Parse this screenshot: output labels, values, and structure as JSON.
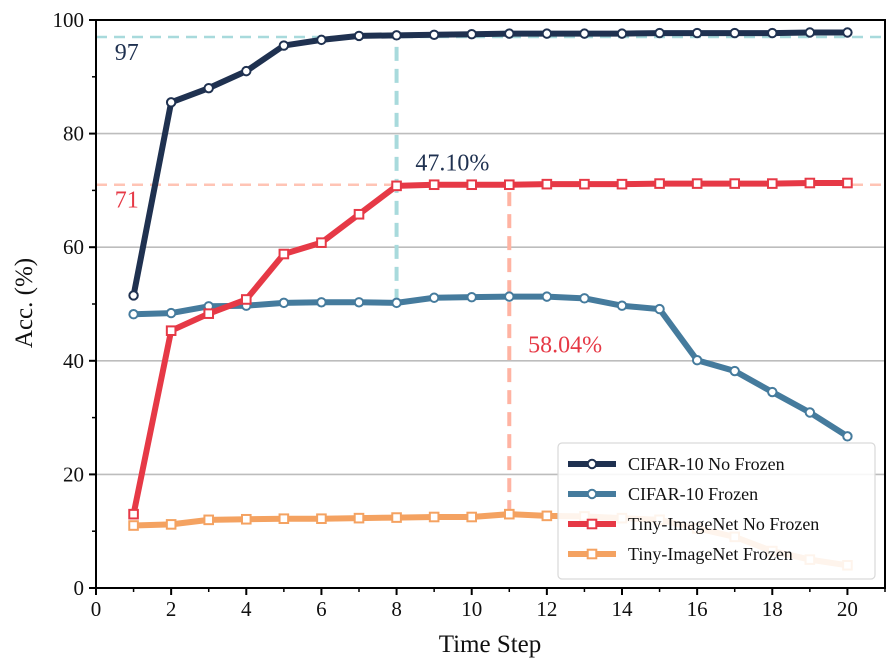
{
  "chart_data": {
    "type": "line",
    "title": "",
    "xlabel": "Time Step",
    "ylabel": "Acc. (%)",
    "xlim": [
      0,
      21
    ],
    "ylim": [
      0,
      100
    ],
    "xticks": [
      0,
      2,
      4,
      6,
      8,
      10,
      12,
      14,
      16,
      18,
      20
    ],
    "yticks": [
      0,
      20,
      40,
      60,
      80,
      100
    ],
    "grid": "horizontal",
    "legend_position": "bottom-right",
    "x": [
      1,
      2,
      3,
      4,
      5,
      6,
      7,
      8,
      9,
      10,
      11,
      12,
      13,
      14,
      15,
      16,
      17,
      18,
      19,
      20
    ],
    "series": [
      {
        "name": "CIFAR-10 No Frozen",
        "color": "#1f3150",
        "marker": "circle",
        "values": [
          51.5,
          85.5,
          88,
          91,
          95.5,
          96.5,
          97.2,
          97.3,
          97.4,
          97.5,
          97.6,
          97.6,
          97.6,
          97.6,
          97.7,
          97.7,
          97.7,
          97.7,
          97.8,
          97.8
        ]
      },
      {
        "name": "CIFAR-10 Frozen",
        "color": "#457b9d",
        "marker": "circle",
        "values": [
          48.2,
          48.4,
          49.6,
          49.7,
          50.2,
          50.3,
          50.3,
          50.2,
          51.1,
          51.2,
          51.3,
          51.3,
          51.0,
          49.7,
          49.1,
          40.1,
          38.2,
          34.5,
          30.9,
          26.7
        ]
      },
      {
        "name": "Tiny-ImageNet No Frozen",
        "color": "#e63946",
        "marker": "square",
        "values": [
          13.0,
          45.3,
          48.3,
          50.8,
          58.8,
          60.8,
          65.8,
          70.8,
          71.0,
          71.0,
          71.0,
          71.1,
          71.1,
          71.1,
          71.2,
          71.2,
          71.2,
          71.2,
          71.3,
          71.3
        ]
      },
      {
        "name": "Tiny-ImageNet Frozen",
        "color": "#f4a261",
        "marker": "square",
        "values": [
          11.0,
          11.2,
          12.0,
          12.1,
          12.2,
          12.2,
          12.3,
          12.4,
          12.5,
          12.5,
          13.0,
          12.7,
          12.6,
          12.3,
          12.0,
          10.5,
          9.0,
          6.5,
          5.0,
          4.0
        ]
      }
    ],
    "reference_lines": [
      {
        "orientation": "horizontal",
        "y": 97,
        "label": "97",
        "color": "#a8dadc",
        "label_color": "#1f3150"
      },
      {
        "orientation": "horizontal",
        "y": 71,
        "label": "71",
        "color": "#ffc4b5",
        "label_color": "#e63946"
      }
    ],
    "markers": [
      {
        "x": 8,
        "y_from": 50.2,
        "y_to": 97.3,
        "color": "#a8dadc"
      },
      {
        "x": 11,
        "y_from": 13.0,
        "y_to": 71.0,
        "color": "#ffb3a2"
      }
    ],
    "annotations": [
      {
        "text": "47.10%",
        "x": 8.5,
        "y": 73.5,
        "color": "#1f3150"
      },
      {
        "text": "58.04%",
        "x": 11.5,
        "y": 41.5,
        "color": "#e63946"
      }
    ]
  }
}
